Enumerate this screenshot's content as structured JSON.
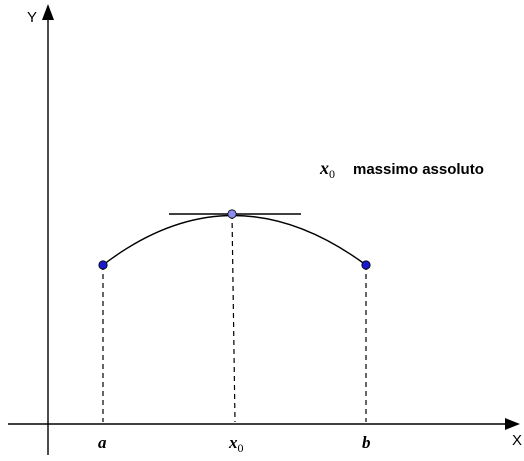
{
  "axes": {
    "x_label": "X",
    "y_label": "Y"
  },
  "points": {
    "a": {
      "label": "a"
    },
    "x0": {
      "label": "x",
      "sub": "0"
    },
    "b": {
      "label": "b"
    }
  },
  "annotation": {
    "var": "x",
    "sub": "0",
    "text": "massimo assoluto"
  },
  "colors": {
    "endpoint": "#1a1acc",
    "max_point": "#8c8cf0",
    "stroke": "#000000"
  }
}
